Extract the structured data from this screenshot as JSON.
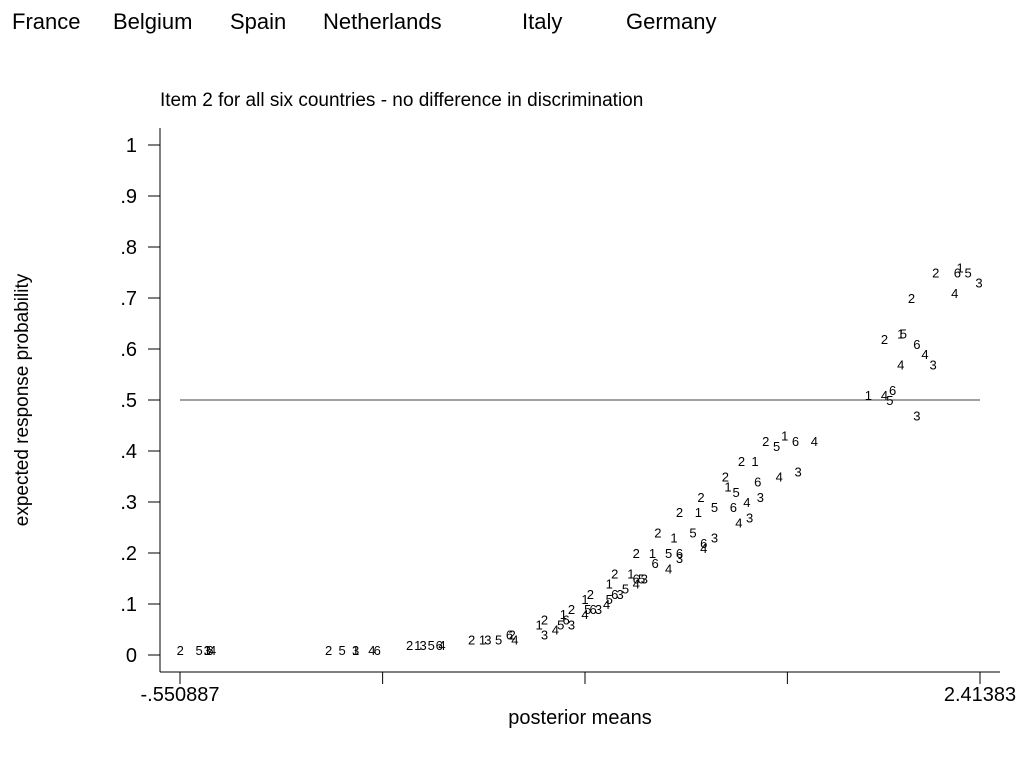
{
  "legend": {
    "labels": [
      "France",
      "Belgium",
      "Spain",
      "Netherlands",
      "Italy",
      "Germany"
    ]
  },
  "chart_data": {
    "type": "scatter",
    "title": "Item 2 for all six countries - no difference in discrimination",
    "xlabel": "posterior means",
    "ylabel": "expected response probability",
    "xlim": [
      -0.550887,
      2.41383
    ],
    "ylim": [
      0,
      1
    ],
    "x_ticks": [
      {
        "value": -0.550887,
        "label": "-.550887"
      },
      {
        "value": 0.2,
        "label": ""
      },
      {
        "value": 0.95,
        "label": ""
      },
      {
        "value": 1.7,
        "label": ""
      },
      {
        "value": 2.41383,
        "label": "2.41383"
      }
    ],
    "y_ticks": [
      {
        "value": 0,
        "label": "0"
      },
      {
        "value": 0.1,
        "label": ".1"
      },
      {
        "value": 0.2,
        "label": ".2"
      },
      {
        "value": 0.3,
        "label": ".3"
      },
      {
        "value": 0.4,
        "label": ".4"
      },
      {
        "value": 0.5,
        "label": ".5"
      },
      {
        "value": 0.6,
        "label": ".6"
      },
      {
        "value": 0.7,
        "label": ".7"
      },
      {
        "value": 0.8,
        "label": ".8"
      },
      {
        "value": 0.9,
        "label": ".9"
      },
      {
        "value": 1,
        "label": "1"
      }
    ],
    "reference_line": {
      "y": 0.5
    },
    "grid": false,
    "legend_placement": "top",
    "markers": "digits 1-6 indexing the six countries in legend order",
    "series": [
      {
        "marker": "1",
        "points": [
          [
            -0.45,
            0.01
          ],
          [
            0.1,
            0.01
          ],
          [
            0.33,
            0.02
          ],
          [
            0.57,
            0.03
          ],
          [
            0.78,
            0.06
          ],
          [
            0.87,
            0.08
          ],
          [
            0.95,
            0.11
          ],
          [
            1.04,
            0.14
          ],
          [
            1.12,
            0.16
          ],
          [
            1.2,
            0.2
          ],
          [
            1.28,
            0.23
          ],
          [
            1.37,
            0.28
          ],
          [
            1.48,
            0.33
          ],
          [
            1.58,
            0.38
          ],
          [
            1.69,
            0.43
          ],
          [
            2.0,
            0.51
          ],
          [
            2.12,
            0.63
          ],
          [
            2.34,
            0.76
          ]
        ]
      },
      {
        "marker": "2",
        "points": [
          [
            -0.55,
            0.01
          ],
          [
            0.0,
            0.01
          ],
          [
            0.3,
            0.02
          ],
          [
            0.53,
            0.03
          ],
          [
            0.68,
            0.04
          ],
          [
            0.8,
            0.07
          ],
          [
            0.9,
            0.09
          ],
          [
            0.97,
            0.12
          ],
          [
            1.06,
            0.16
          ],
          [
            1.14,
            0.2
          ],
          [
            1.22,
            0.24
          ],
          [
            1.3,
            0.28
          ],
          [
            1.38,
            0.31
          ],
          [
            1.47,
            0.35
          ],
          [
            1.53,
            0.38
          ],
          [
            1.62,
            0.42
          ],
          [
            2.06,
            0.62
          ],
          [
            2.16,
            0.7
          ],
          [
            2.25,
            0.75
          ]
        ]
      },
      {
        "marker": "3",
        "points": [
          [
            -0.45,
            0.01
          ],
          [
            0.1,
            0.01
          ],
          [
            0.35,
            0.02
          ],
          [
            0.59,
            0.03
          ],
          [
            0.8,
            0.04
          ],
          [
            0.9,
            0.06
          ],
          [
            1.0,
            0.09
          ],
          [
            1.08,
            0.12
          ],
          [
            1.17,
            0.15
          ],
          [
            1.3,
            0.19
          ],
          [
            1.43,
            0.23
          ],
          [
            1.56,
            0.27
          ],
          [
            1.6,
            0.31
          ],
          [
            1.74,
            0.36
          ],
          [
            2.18,
            0.47
          ],
          [
            2.24,
            0.57
          ],
          [
            2.41,
            0.73
          ]
        ]
      },
      {
        "marker": "4",
        "points": [
          [
            -0.43,
            0.01
          ],
          [
            0.16,
            0.01
          ],
          [
            0.42,
            0.02
          ],
          [
            0.69,
            0.03
          ],
          [
            0.84,
            0.05
          ],
          [
            0.95,
            0.08
          ],
          [
            1.03,
            0.1
          ],
          [
            1.14,
            0.14
          ],
          [
            1.26,
            0.17
          ],
          [
            1.39,
            0.21
          ],
          [
            1.52,
            0.26
          ],
          [
            1.55,
            0.3
          ],
          [
            1.67,
            0.35
          ],
          [
            1.8,
            0.42
          ],
          [
            2.06,
            0.51
          ],
          [
            2.12,
            0.57
          ],
          [
            2.21,
            0.59
          ],
          [
            2.32,
            0.71
          ]
        ]
      },
      {
        "marker": "5",
        "points": [
          [
            -0.48,
            0.01
          ],
          [
            0.05,
            0.01
          ],
          [
            0.38,
            0.02
          ],
          [
            0.63,
            0.03
          ],
          [
            0.86,
            0.06
          ],
          [
            0.96,
            0.09
          ],
          [
            1.04,
            0.11
          ],
          [
            1.1,
            0.13
          ],
          [
            1.16,
            0.15
          ],
          [
            1.26,
            0.2
          ],
          [
            1.35,
            0.24
          ],
          [
            1.43,
            0.29
          ],
          [
            1.51,
            0.32
          ],
          [
            1.66,
            0.41
          ],
          [
            2.08,
            0.5
          ],
          [
            2.13,
            0.63
          ],
          [
            2.37,
            0.75
          ]
        ]
      },
      {
        "marker": "6",
        "points": [
          [
            -0.44,
            0.01
          ],
          [
            0.18,
            0.01
          ],
          [
            0.41,
            0.02
          ],
          [
            0.67,
            0.04
          ],
          [
            0.88,
            0.07
          ],
          [
            0.98,
            0.09
          ],
          [
            1.06,
            0.12
          ],
          [
            1.14,
            0.15
          ],
          [
            1.21,
            0.18
          ],
          [
            1.3,
            0.2
          ],
          [
            1.39,
            0.22
          ],
          [
            1.5,
            0.29
          ],
          [
            1.59,
            0.34
          ],
          [
            1.73,
            0.42
          ],
          [
            2.09,
            0.52
          ],
          [
            2.18,
            0.61
          ],
          [
            2.33,
            0.75
          ]
        ]
      }
    ]
  }
}
